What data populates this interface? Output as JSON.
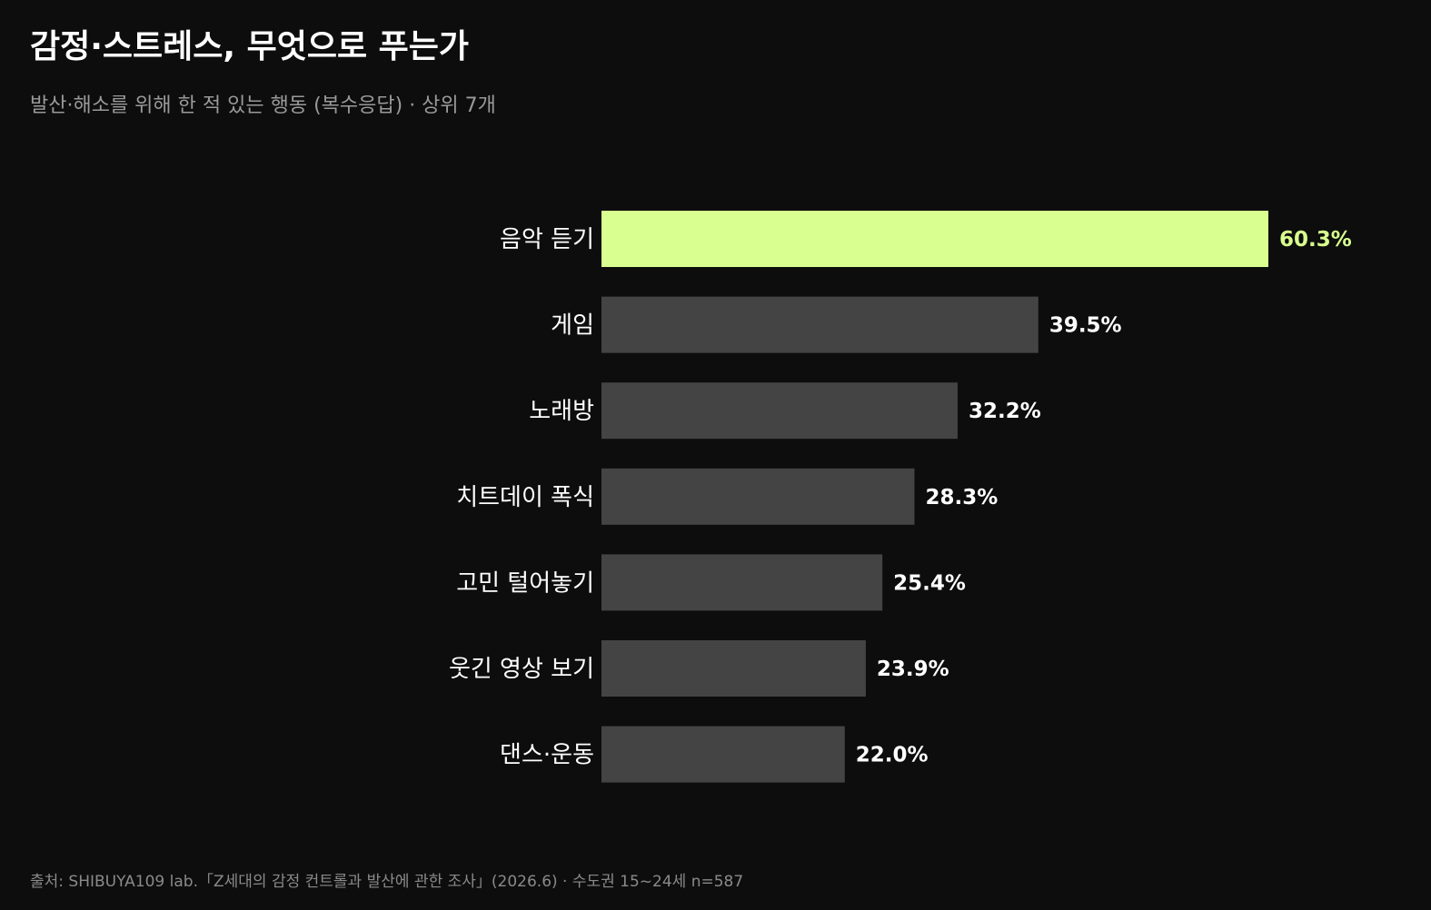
{
  "header": {
    "title": "감정·스트레스, 무엇으로 푸는가",
    "subtitle": "발산·해소를 위해 한 적 있는 행동 (복수응답) · 상위 7개"
  },
  "footer": {
    "source": "출처: SHIBUYA109 lab.「Z세대의 감정 컨트롤과 발산에 관한 조사」(2026.6) · 수도권 15~24세 n=587"
  },
  "colors": {
    "highlight": "#d8ff8f",
    "bar": "#444444",
    "label": "#ffffff"
  },
  "chart_data": {
    "type": "bar",
    "orientation": "horizontal",
    "categories": [
      "음악 듣기",
      "게임",
      "노래방",
      "치트데이 폭식",
      "고민 털어놓기",
      "웃긴 영상 보기",
      "댄스·운동"
    ],
    "values": [
      60.3,
      39.5,
      32.2,
      28.3,
      25.4,
      23.9,
      22.0
    ],
    "value_labels": [
      "60.3%",
      "39.5%",
      "32.2%",
      "28.3%",
      "25.4%",
      "23.9%",
      "22.0%"
    ],
    "unit": "%",
    "highlight_index": 0,
    "title": "감정·스트레스, 무엇으로 푸는가",
    "xlabel": "",
    "ylabel": "",
    "xlim": [
      0,
      60.3
    ],
    "grid": false,
    "legend": "none"
  }
}
